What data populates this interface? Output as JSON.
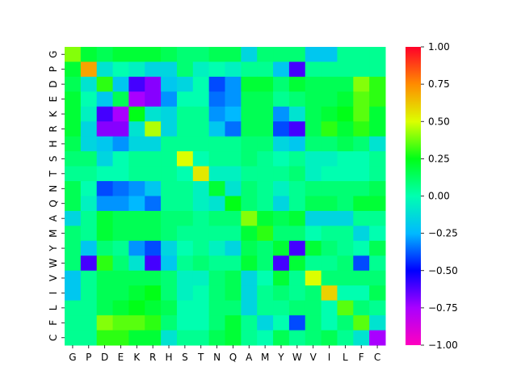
{
  "chart_data": {
    "type": "heatmap",
    "title": "",
    "xlabel": "",
    "ylabel": "",
    "x_categories": [
      "G",
      "P",
      "D",
      "E",
      "K",
      "R",
      "H",
      "S",
      "T",
      "N",
      "Q",
      "A",
      "M",
      "Y",
      "W",
      "V",
      "I",
      "L",
      "F",
      "C"
    ],
    "y_categories": [
      "G",
      "P",
      "D",
      "E",
      "K",
      "R",
      "H",
      "S",
      "T",
      "N",
      "Q",
      "A",
      "M",
      "Y",
      "W",
      "V",
      "I",
      "L",
      "F",
      "C"
    ],
    "values": [
      [
        0.4,
        0.2,
        0.15,
        0.2,
        0.2,
        0.2,
        0.15,
        0.1,
        0.1,
        0.15,
        0.15,
        -0.15,
        0.1,
        0.1,
        0.1,
        -0.2,
        -0.2,
        0.05,
        0.05,
        0.05
      ],
      [
        0.2,
        0.7,
        -0.1,
        0.0,
        -0.05,
        -0.15,
        -0.15,
        0.1,
        -0.05,
        0.0,
        -0.05,
        0.05,
        0.05,
        -0.2,
        -0.6,
        0.05,
        0.05,
        0.05,
        0.05,
        0.05
      ],
      [
        0.15,
        -0.1,
        0.3,
        -0.2,
        -0.6,
        -0.7,
        -0.2,
        -0.15,
        0.0,
        -0.4,
        -0.3,
        0.2,
        0.2,
        0.1,
        0.2,
        0.15,
        0.15,
        0.15,
        0.4,
        0.3
      ],
      [
        0.2,
        0.0,
        -0.2,
        0.15,
        -0.75,
        -0.7,
        -0.3,
        0.0,
        0.0,
        -0.35,
        -0.3,
        0.15,
        0.15,
        0.05,
        0.1,
        0.15,
        0.15,
        0.2,
        0.35,
        0.3
      ],
      [
        0.2,
        -0.05,
        -0.6,
        -0.75,
        0.25,
        -0.1,
        -0.15,
        0.05,
        0.05,
        -0.3,
        -0.25,
        0.15,
        0.15,
        -0.3,
        -0.1,
        0.15,
        0.2,
        0.25,
        0.35,
        0.2
      ],
      [
        0.2,
        -0.15,
        -0.7,
        -0.7,
        -0.1,
        0.45,
        -0.15,
        0.05,
        0.05,
        -0.2,
        -0.35,
        0.15,
        0.15,
        -0.4,
        -0.6,
        0.15,
        0.3,
        0.2,
        0.3,
        0.2
      ],
      [
        0.15,
        -0.15,
        -0.2,
        -0.3,
        -0.15,
        -0.15,
        0.05,
        0.05,
        0.05,
        0.05,
        0.05,
        0.1,
        0.1,
        -0.15,
        -0.2,
        0.1,
        0.1,
        0.15,
        0.1,
        -0.1
      ],
      [
        0.1,
        0.1,
        -0.15,
        0.0,
        0.05,
        0.05,
        0.05,
        0.5,
        0.0,
        0.05,
        0.05,
        0.1,
        0.05,
        0.0,
        0.05,
        -0.05,
        -0.05,
        0.0,
        0.0,
        0.05
      ],
      [
        0.05,
        0.05,
        0.0,
        0.0,
        0.05,
        0.05,
        0.05,
        0.0,
        0.55,
        -0.05,
        -0.05,
        0.05,
        0.05,
        0.05,
        0.1,
        -0.05,
        0.0,
        0.0,
        0.0,
        0.05
      ],
      [
        0.15,
        0.0,
        -0.4,
        -0.35,
        -0.3,
        -0.2,
        0.05,
        0.05,
        -0.05,
        0.2,
        -0.1,
        0.1,
        0.05,
        -0.05,
        0.05,
        0.1,
        0.1,
        0.1,
        0.1,
        0.15
      ],
      [
        0.15,
        -0.05,
        -0.3,
        -0.3,
        -0.25,
        -0.35,
        0.05,
        0.05,
        -0.05,
        -0.1,
        0.25,
        0.1,
        0.05,
        -0.15,
        0.05,
        0.15,
        0.15,
        0.1,
        0.2,
        0.2
      ],
      [
        -0.15,
        0.05,
        0.2,
        0.15,
        0.15,
        0.15,
        0.1,
        0.1,
        0.05,
        0.1,
        0.1,
        0.4,
        0.2,
        0.15,
        0.2,
        -0.15,
        -0.15,
        -0.15,
        0.05,
        0.05
      ],
      [
        0.1,
        0.05,
        0.2,
        0.15,
        0.15,
        0.15,
        0.1,
        0.05,
        0.05,
        0.05,
        0.05,
        0.2,
        0.3,
        0.1,
        0.1,
        0.0,
        0.05,
        0.05,
        -0.15,
        0.0
      ],
      [
        0.1,
        -0.2,
        0.1,
        0.05,
        -0.3,
        -0.4,
        -0.15,
        0.0,
        0.05,
        -0.05,
        -0.15,
        0.15,
        0.1,
        0.2,
        -0.6,
        0.2,
        0.1,
        0.05,
        0.0,
        0.15
      ],
      [
        0.1,
        -0.6,
        0.3,
        0.1,
        -0.1,
        -0.6,
        -0.2,
        0.05,
        0.1,
        0.05,
        0.05,
        0.2,
        0.1,
        -0.6,
        0.2,
        0.05,
        0.05,
        0.1,
        -0.4,
        0.05
      ],
      [
        -0.2,
        0.05,
        0.15,
        0.15,
        0.15,
        0.15,
        0.1,
        -0.05,
        -0.05,
        0.1,
        0.15,
        -0.15,
        0.0,
        0.2,
        0.05,
        0.5,
        0.1,
        0.1,
        0.1,
        0.1
      ],
      [
        -0.2,
        0.05,
        0.15,
        0.15,
        0.2,
        0.25,
        0.1,
        -0.05,
        0.0,
        0.1,
        0.15,
        -0.15,
        0.05,
        0.1,
        0.05,
        0.1,
        0.6,
        0.0,
        0.0,
        0.15
      ],
      [
        0.05,
        0.05,
        0.15,
        0.2,
        0.25,
        0.2,
        0.15,
        0.0,
        0.0,
        0.1,
        0.1,
        -0.15,
        0.05,
        0.05,
        0.1,
        0.1,
        0.0,
        0.35,
        0.1,
        0.05
      ],
      [
        0.05,
        0.05,
        0.4,
        0.35,
        0.35,
        0.3,
        0.1,
        0.0,
        0.0,
        0.1,
        0.2,
        0.05,
        -0.15,
        0.0,
        -0.4,
        0.1,
        0.0,
        0.1,
        0.35,
        -0.1
      ],
      [
        0.05,
        0.05,
        0.3,
        0.3,
        0.2,
        0.2,
        -0.1,
        0.05,
        0.05,
        0.15,
        0.2,
        0.05,
        0.0,
        0.15,
        0.05,
        0.1,
        0.15,
        0.05,
        -0.1,
        -0.75
      ]
    ],
    "vmin": -1.0,
    "vmax": 1.0,
    "colormap": "gist_rainbow",
    "colorbar_ticks": [
      "1.00",
      "0.75",
      "0.50",
      "0.25",
      "0.00",
      "−0.25",
      "−0.50",
      "−0.75",
      "−1.00"
    ],
    "colorbar_tick_values": [
      1.0,
      0.75,
      0.5,
      0.25,
      0.0,
      -0.25,
      -0.5,
      -0.75,
      -1.0
    ],
    "grid": false
  }
}
